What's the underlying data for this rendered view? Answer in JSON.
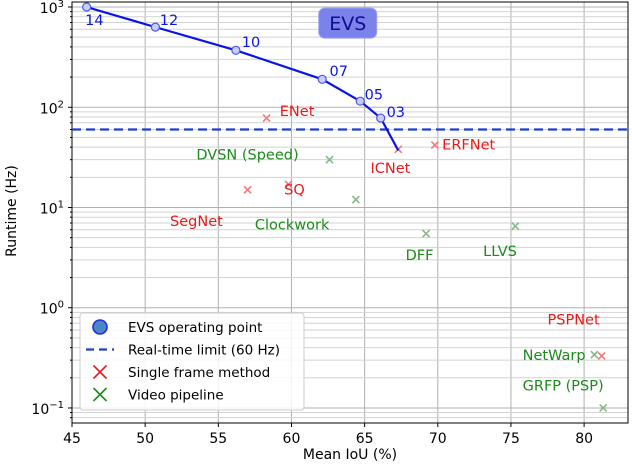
{
  "chart_data": {
    "type": "scatter",
    "xlabel": "Mean IoU (%)",
    "ylabel": "Runtime (Hz)",
    "xlim": [
      45,
      83
    ],
    "ylim_log10": [
      -1.15,
      3.05
    ],
    "yscale": "log",
    "grid": true,
    "x_ticks": [
      45,
      50,
      55,
      60,
      65,
      70,
      75,
      80
    ],
    "y_ticks": [
      {
        "value": 0.1,
        "base": "10",
        "exp": "−1"
      },
      {
        "value": 1,
        "base": "10",
        "exp": "0"
      },
      {
        "value": 10,
        "base": "10",
        "exp": "1"
      },
      {
        "value": 100,
        "base": "10",
        "exp": "2"
      },
      {
        "value": 1000,
        "base": "10",
        "exp": "3"
      }
    ],
    "title_box": {
      "text": "EVS",
      "x": 62,
      "y": 630,
      "fill": "#7b83eb",
      "text_color": "#0d0d8f"
    },
    "evs_curve": {
      "color": "#0a14e6",
      "points": [
        {
          "x": 46.0,
          "y": 1000,
          "label": "14",
          "lx": 45.9,
          "ly": 660
        },
        {
          "x": 50.7,
          "y": 630,
          "label": "12",
          "lx": 51.0,
          "ly": 660
        },
        {
          "x": 56.2,
          "y": 370,
          "label": "10",
          "lx": 56.6,
          "ly": 400
        },
        {
          "x": 62.1,
          "y": 190,
          "label": "07",
          "lx": 62.6,
          "ly": 205
        },
        {
          "x": 64.7,
          "y": 115,
          "label": "05",
          "lx": 65.0,
          "ly": 120
        },
        {
          "x": 66.1,
          "y": 78,
          "label": "03",
          "lx": 66.5,
          "ly": 80
        },
        {
          "x": 67.3,
          "y": 37,
          "label": "",
          "lx": 0,
          "ly": 0
        }
      ]
    },
    "realtime_limit": {
      "y": 60,
      "color": "#1f3fcf"
    },
    "single_frame_methods": {
      "color": "#e81a1a",
      "marker_color": "#f07a7a",
      "points": [
        {
          "x": 58.3,
          "y": 78,
          "label": "ENet",
          "lx": 59.2,
          "ly": 82
        },
        {
          "x": 67.3,
          "y": 38,
          "label": "ICNet",
          "lx": 65.4,
          "ly": 22
        },
        {
          "x": 69.8,
          "y": 42,
          "label": "ERFNet",
          "lx": 70.3,
          "ly": 38
        },
        {
          "x": 57.0,
          "y": 15,
          "label": "SegNet",
          "lx": 51.7,
          "ly": 6.5
        },
        {
          "x": 59.8,
          "y": 17,
          "label": "SQ",
          "lx": 59.5,
          "ly": 13.5
        },
        {
          "x": 81.2,
          "y": 0.33,
          "label": "PSPNet",
          "lx": 77.5,
          "ly": 0.68
        }
      ]
    },
    "video_pipelines": {
      "color": "#1b8a1b",
      "marker_color": "#85b985",
      "points": [
        {
          "x": 62.6,
          "y": 30,
          "label": "DVSN (Speed)",
          "lx": 53.5,
          "ly": 30
        },
        {
          "x": 64.4,
          "y": 12,
          "label": "Clockwork",
          "lx": 57.5,
          "ly": 6.0
        },
        {
          "x": 69.2,
          "y": 5.5,
          "label": "DFF",
          "lx": 67.8,
          "ly": 3.0
        },
        {
          "x": 75.3,
          "y": 6.5,
          "label": "LLVS",
          "lx": 73.1,
          "ly": 3.3
        },
        {
          "x": 80.7,
          "y": 0.34,
          "label": "NetWarp",
          "lx": 75.8,
          "ly": 0.3
        },
        {
          "x": 81.3,
          "y": 0.1,
          "label": "GRFP (PSP)",
          "lx": 75.8,
          "ly": 0.15
        }
      ]
    },
    "legend": {
      "placement": "lower-left",
      "entries": [
        {
          "label": "EVS operating point",
          "kind": "point"
        },
        {
          "label": "Real-time limit (60 Hz)",
          "kind": "dash"
        },
        {
          "label": "Single frame method",
          "kind": "cross-red"
        },
        {
          "label": "Video pipeline",
          "kind": "cross-green"
        }
      ]
    }
  }
}
